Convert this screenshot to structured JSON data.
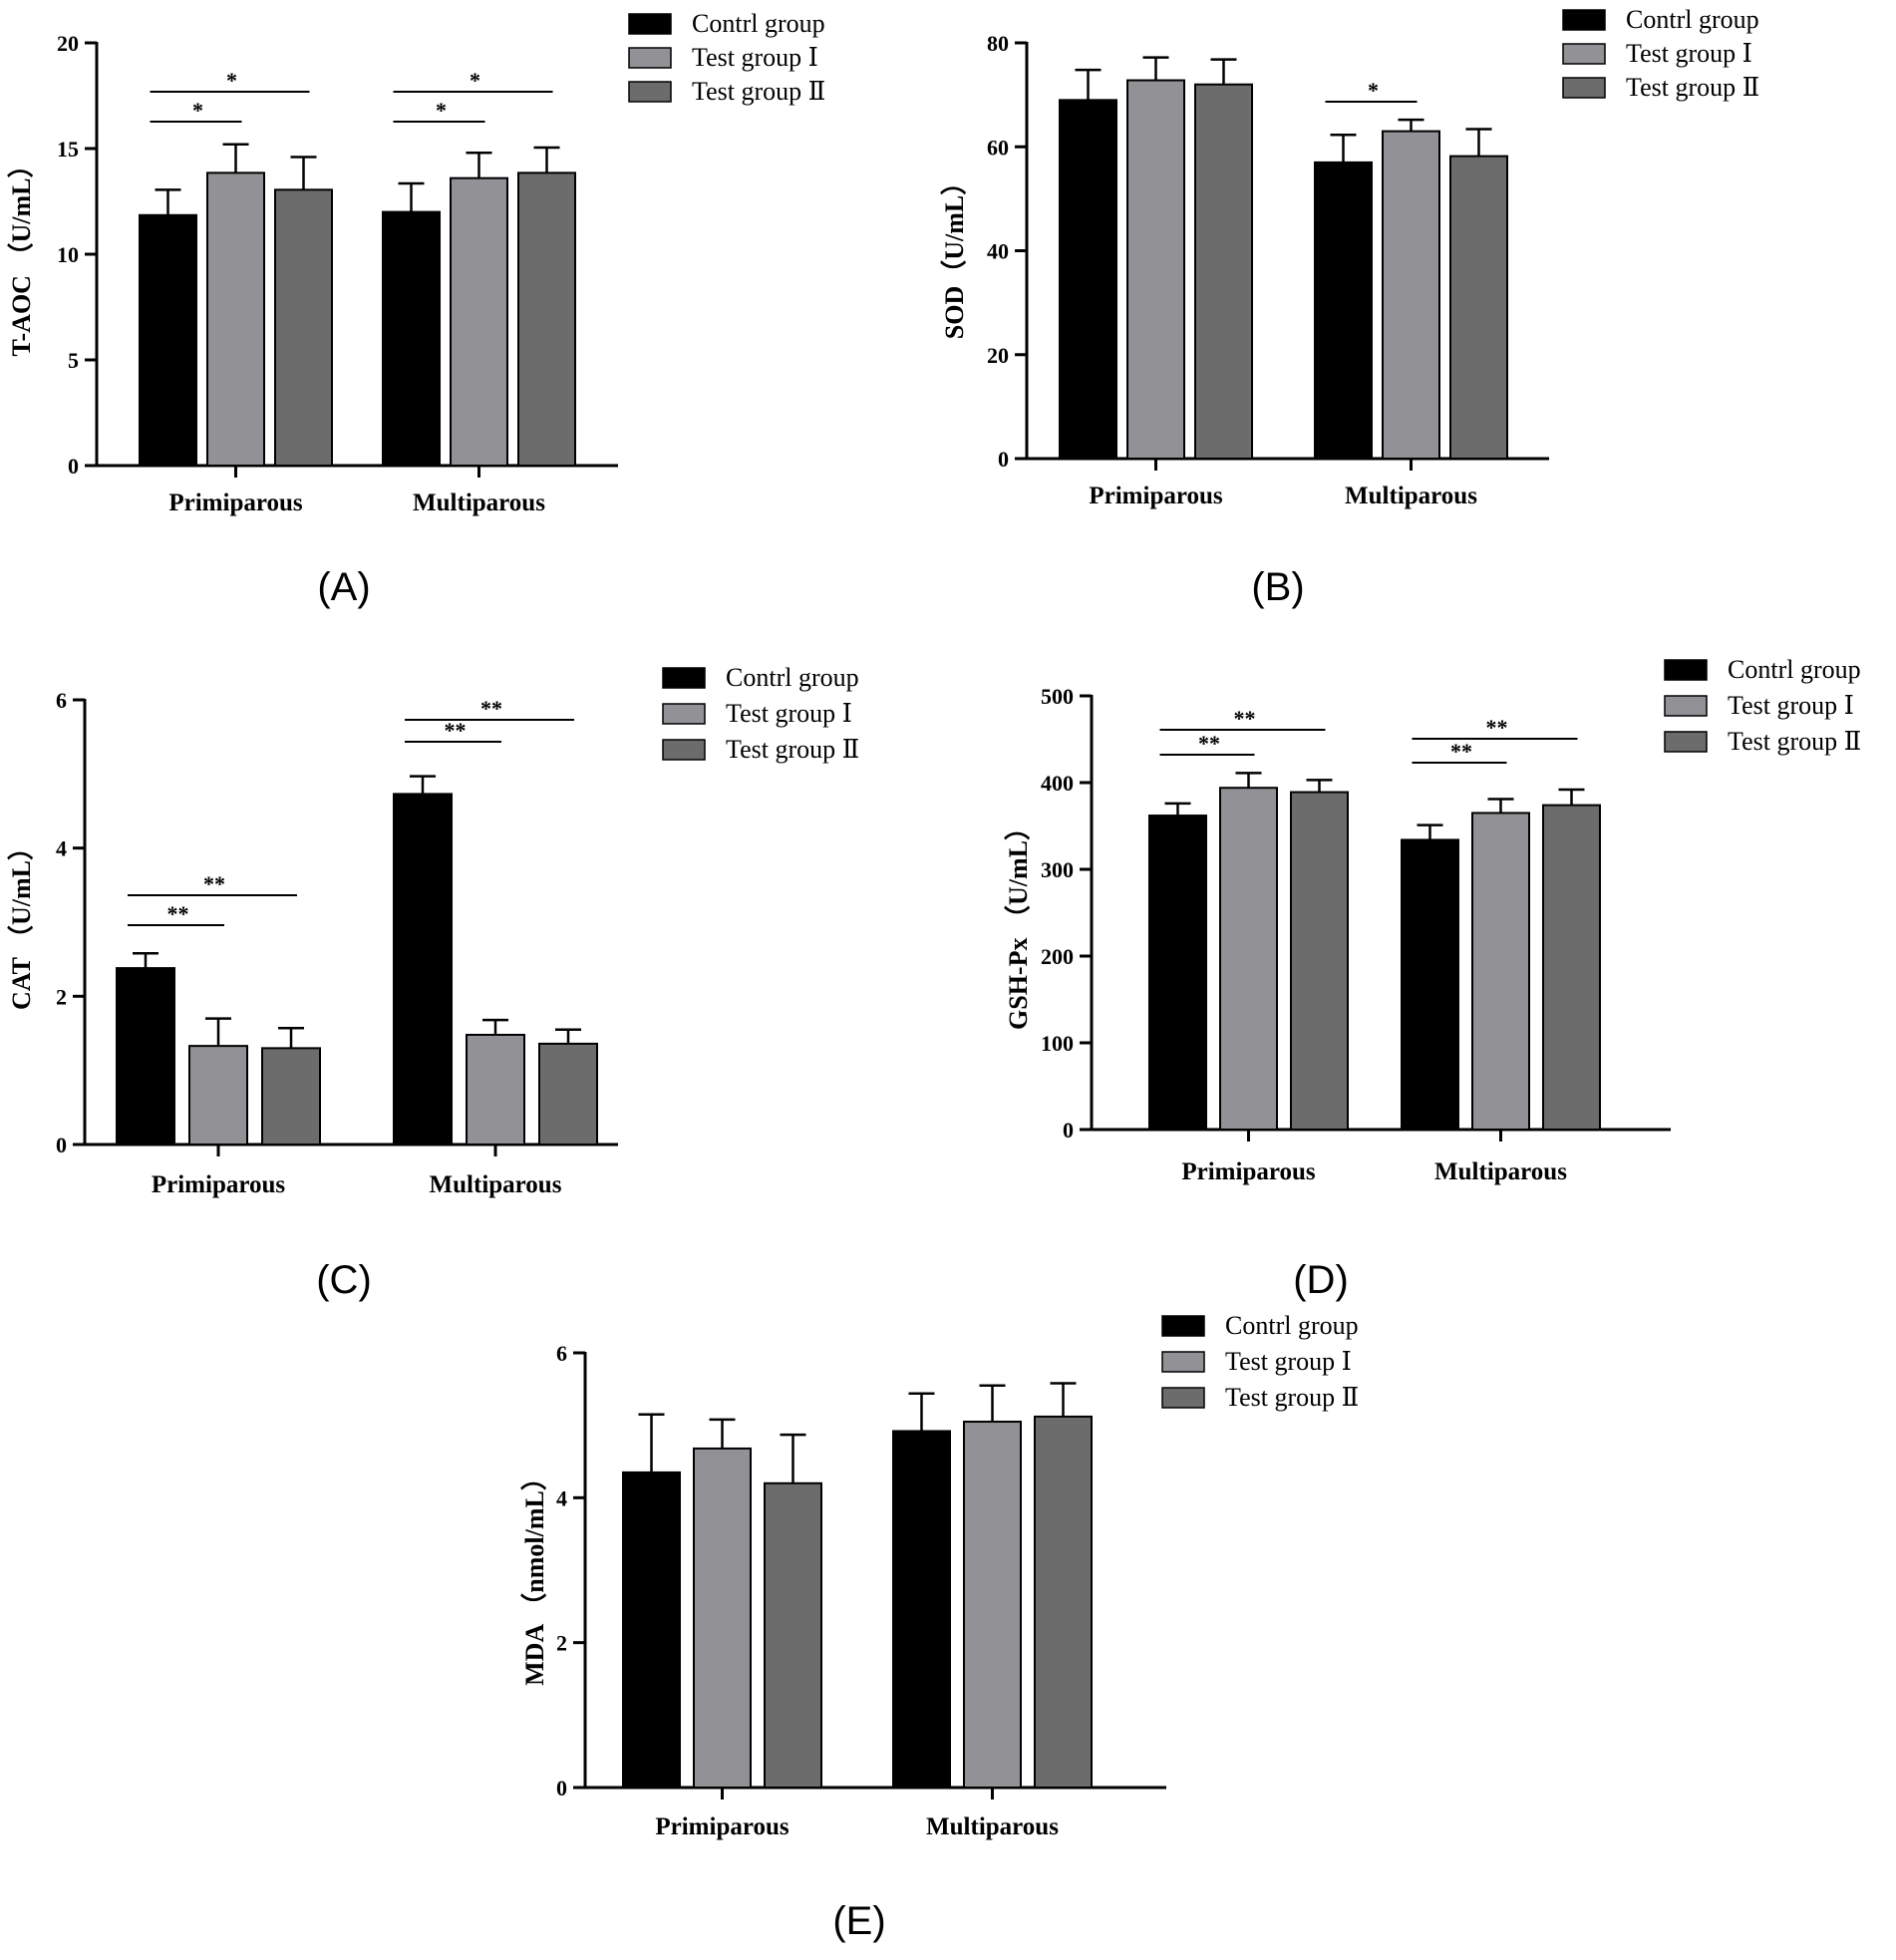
{
  "colors": {
    "control": "#000000",
    "test1": "#929196",
    "test2": "#6c6c6c"
  },
  "chart_data": [
    {
      "id": "A",
      "type": "bar",
      "panel_label": "(A)",
      "ylabel": "T-AOC  （U/mL）",
      "categories": [
        "Primiparous",
        "Multiparous"
      ],
      "ylim": [
        0,
        20
      ],
      "yticks": [
        0,
        5,
        10,
        15,
        20
      ],
      "legend": {
        "position": "top-right",
        "entries": [
          "Contrl group",
          "Test group Ⅰ",
          "Test group Ⅱ"
        ]
      },
      "series": [
        {
          "name": "Contrl group",
          "values": [
            11.85,
            12.0
          ],
          "errors": [
            1.2,
            1.35
          ]
        },
        {
          "name": "Test group Ⅰ",
          "values": [
            13.85,
            13.6
          ],
          "errors": [
            1.35,
            1.2
          ]
        },
        {
          "name": "Test group Ⅱ",
          "values": [
            13.05,
            13.85
          ],
          "errors": [
            1.55,
            1.2
          ]
        }
      ],
      "significance": [
        {
          "category": 0,
          "from": 0,
          "to": 1,
          "label": "*"
        },
        {
          "category": 0,
          "from": 0,
          "to": 2,
          "label": "*"
        },
        {
          "category": 1,
          "from": 0,
          "to": 1,
          "label": "*"
        },
        {
          "category": 1,
          "from": 0,
          "to": 2,
          "label": "*"
        }
      ]
    },
    {
      "id": "B",
      "type": "bar",
      "panel_label": "(B)",
      "ylabel": "SOD（U/mL）",
      "categories": [
        "Primiparous",
        "Multiparous"
      ],
      "ylim": [
        0,
        80
      ],
      "yticks": [
        0,
        20,
        40,
        60,
        80
      ],
      "legend": {
        "position": "top-right",
        "entries": [
          "Contrl group",
          "Test group Ⅰ",
          "Test group Ⅱ"
        ]
      },
      "series": [
        {
          "name": "Contrl group",
          "values": [
            69.0,
            57.0
          ],
          "errors": [
            5.8,
            5.3
          ]
        },
        {
          "name": "Test group Ⅰ",
          "values": [
            72.8,
            63.0
          ],
          "errors": [
            4.4,
            2.2
          ]
        },
        {
          "name": "Test group Ⅱ",
          "values": [
            72.0,
            58.2
          ],
          "errors": [
            4.8,
            5.2
          ]
        }
      ],
      "significance": [
        {
          "category": 1,
          "from": 0,
          "to": 1,
          "label": "*"
        }
      ]
    },
    {
      "id": "C",
      "type": "bar",
      "panel_label": "(C)",
      "ylabel": "CAT  （U/mL）",
      "categories": [
        "Primiparous",
        "Multiparous"
      ],
      "ylim": [
        0,
        6
      ],
      "yticks": [
        0,
        2,
        4,
        6
      ],
      "legend": {
        "position": "top-right",
        "entries": [
          "Contrl group",
          "Test group Ⅰ",
          "Test group Ⅱ"
        ]
      },
      "series": [
        {
          "name": "Contrl group",
          "values": [
            2.38,
            4.73
          ],
          "errors": [
            0.2,
            0.24
          ]
        },
        {
          "name": "Test group Ⅰ",
          "values": [
            1.33,
            1.48
          ],
          "errors": [
            0.37,
            0.2
          ]
        },
        {
          "name": "Test group Ⅱ",
          "values": [
            1.3,
            1.36
          ],
          "errors": [
            0.27,
            0.19
          ]
        }
      ],
      "significance": [
        {
          "category": 0,
          "from": 0,
          "to": 1,
          "label": "**"
        },
        {
          "category": 0,
          "from": 0,
          "to": 2,
          "label": "**"
        },
        {
          "category": 1,
          "from": 0,
          "to": 1,
          "label": "**"
        },
        {
          "category": 1,
          "from": 0,
          "to": 2,
          "label": "**"
        }
      ]
    },
    {
      "id": "D",
      "type": "bar",
      "panel_label": "(D)",
      "ylabel": "GSH-Px  （U/mL）",
      "categories": [
        "Primiparous",
        "Multiparous"
      ],
      "ylim": [
        0,
        500
      ],
      "yticks": [
        0,
        100,
        200,
        300,
        400,
        500
      ],
      "legend": {
        "position": "top-right",
        "entries": [
          "Contrl group",
          "Test group Ⅰ",
          "Test group Ⅱ"
        ]
      },
      "series": [
        {
          "name": "Contrl group",
          "values": [
            362,
            334
          ],
          "errors": [
            14,
            17
          ]
        },
        {
          "name": "Test group Ⅰ",
          "values": [
            394,
            365
          ],
          "errors": [
            17,
            16
          ]
        },
        {
          "name": "Test group Ⅱ",
          "values": [
            389,
            374
          ],
          "errors": [
            14,
            18
          ]
        }
      ],
      "significance": [
        {
          "category": 0,
          "from": 0,
          "to": 1,
          "label": "**"
        },
        {
          "category": 0,
          "from": 0,
          "to": 2,
          "label": "**"
        },
        {
          "category": 1,
          "from": 0,
          "to": 1,
          "label": "**"
        },
        {
          "category": 1,
          "from": 0,
          "to": 2,
          "label": "**"
        }
      ]
    },
    {
      "id": "E",
      "type": "bar",
      "panel_label": "(E)",
      "ylabel": "MDA  （nmol/mL）",
      "categories": [
        "Primiparous",
        "Multiparous"
      ],
      "ylim": [
        0,
        6
      ],
      "yticks": [
        0,
        2,
        4,
        6
      ],
      "legend": {
        "position": "top-right",
        "entries": [
          "Contrl group",
          "Test group Ⅰ",
          "Test group Ⅱ"
        ]
      },
      "series": [
        {
          "name": "Contrl group",
          "values": [
            4.35,
            4.92
          ],
          "errors": [
            0.8,
            0.52
          ]
        },
        {
          "name": "Test group Ⅰ",
          "values": [
            4.68,
            5.05
          ],
          "errors": [
            0.4,
            0.5
          ]
        },
        {
          "name": "Test group Ⅱ",
          "values": [
            4.2,
            5.12
          ],
          "errors": [
            0.67,
            0.46
          ]
        }
      ],
      "significance": []
    }
  ]
}
